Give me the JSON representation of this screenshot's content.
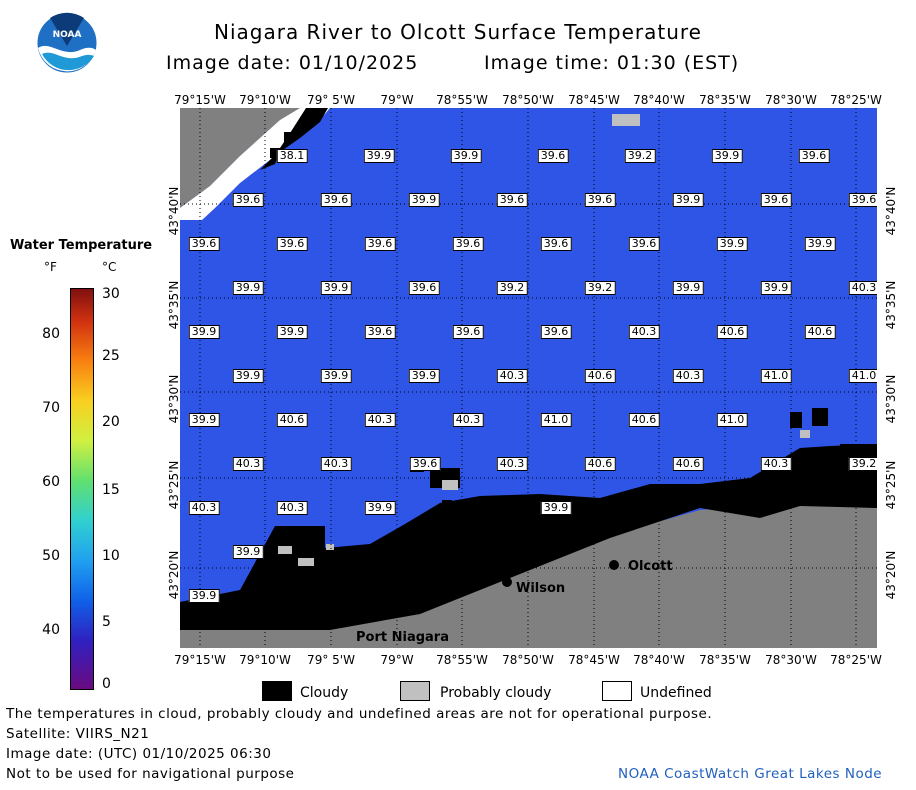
{
  "header": {
    "title": "Niagara River to Olcott Surface Temperature",
    "image_date_label": "Image date: 01/10/2025",
    "image_time_label": "Image time: 01:30 (EST)",
    "logo_text": "NOAA"
  },
  "map": {
    "lon_labels": [
      "79°15'W",
      "79°10'W",
      "79° 5'W",
      "79°W",
      "78°55'W",
      "78°50'W",
      "78°45'W",
      "78°40'W",
      "78°35'W",
      "78°30'W",
      "78°25'W"
    ],
    "lat_labels": [
      "43°40'N",
      "43°35'N",
      "43°30'N",
      "43°25'N",
      "43°20'N"
    ],
    "places": [
      {
        "name": "Olcott"
      },
      {
        "name": "Wilson"
      },
      {
        "name": "Port Niagara"
      }
    ],
    "temperature_rows": [
      [
        "38.1",
        "39.9",
        "39.9",
        "39.6",
        "39.2",
        "39.9",
        "39.6"
      ],
      [
        "39.6",
        "39.6",
        "39.9",
        "39.6",
        "39.6",
        "39.9",
        "39.6",
        "39.6"
      ],
      [
        "39.6",
        "39.6",
        "39.6",
        "39.6",
        "39.6",
        "39.6",
        "39.9",
        "39.9"
      ],
      [
        "39.9",
        "39.9",
        "39.6",
        "39.2",
        "39.2",
        "39.9",
        "39.9",
        "40.3"
      ],
      [
        "39.9",
        "39.9",
        "39.6",
        "39.6",
        "39.6",
        "40.3",
        "40.6",
        "40.6"
      ],
      [
        "39.9",
        "39.9",
        "39.9",
        "40.3",
        "40.6",
        "40.3",
        "41.0",
        "41.0"
      ],
      [
        "39.9",
        "40.6",
        "40.3",
        "40.3",
        "41.0",
        "40.6",
        "41.0"
      ],
      [
        "40.3",
        "40.3",
        "39.6",
        "40.3",
        "40.6",
        "40.6",
        "40.3",
        "39.2"
      ],
      [
        "40.3",
        "40.3",
        "39.9",
        "39.9"
      ],
      [
        "39.9"
      ],
      [
        "39.9"
      ]
    ],
    "colors": {
      "water": "#2f55e6",
      "land": "#808080",
      "cloud": "#000000",
      "undefined": "#ffffff",
      "probably_cloudy": "#c0c0c0"
    }
  },
  "colorbar": {
    "title": "Water Temperature",
    "unit_f": "°F",
    "unit_c": "°C",
    "f_ticks": [
      "80",
      "70",
      "60",
      "50",
      "40"
    ],
    "c_ticks": [
      "30",
      "25",
      "20",
      "15",
      "10",
      "5",
      "0"
    ]
  },
  "legend": {
    "cloudy": "Cloudy",
    "probably_cloudy": "Probably cloudy",
    "undefined": "Undefined"
  },
  "footer": {
    "line1": "The temperatures in cloud, probably cloudy and undefined areas are not for operational purpose.",
    "line2": "Satellite: VIIRS_N21",
    "line3": "Image date: (UTC) 01/10/2025  06:30",
    "line4": "Not to be used for navigational purpose",
    "credit": "NOAA CoastWatch Great Lakes Node"
  }
}
